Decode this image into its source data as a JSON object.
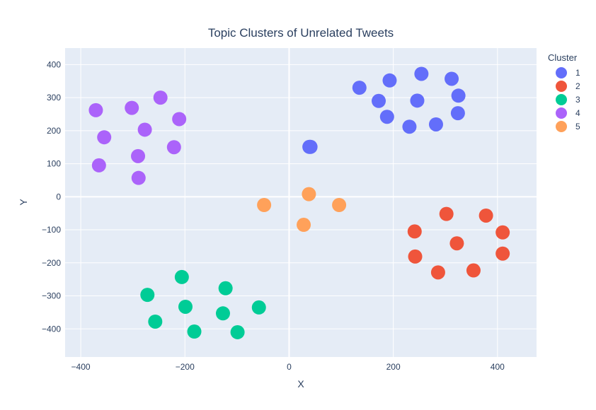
{
  "chart_data": {
    "type": "scatter",
    "title": "Topic Clusters of Unrelated Tweets",
    "xlabel": "X",
    "ylabel": "Y",
    "xlim": [
      -430,
      475
    ],
    "ylim": [
      -485,
      450
    ],
    "xticks": [
      -400,
      -200,
      0,
      200,
      400
    ],
    "yticks": [
      -400,
      -300,
      -200,
      -100,
      0,
      100,
      200,
      300,
      400
    ],
    "grid": true,
    "legend_title": "Cluster",
    "legend_position": "right",
    "series": [
      {
        "name": "1",
        "color": "#636efa",
        "points": [
          [
            135,
            330
          ],
          [
            172,
            290
          ],
          [
            193,
            352
          ],
          [
            188,
            242
          ],
          [
            231,
            212
          ],
          [
            246,
            291
          ],
          [
            254,
            372
          ],
          [
            282,
            219
          ],
          [
            312,
            357
          ],
          [
            325,
            306
          ],
          [
            324,
            253
          ],
          [
            39,
            151
          ],
          [
            41,
            151
          ]
        ]
      },
      {
        "name": "2",
        "color": "#ef553b",
        "points": [
          [
            241,
            -105
          ],
          [
            242,
            -181
          ],
          [
            286,
            -229
          ],
          [
            302,
            -52
          ],
          [
            322,
            -141
          ],
          [
            354,
            -223
          ],
          [
            378,
            -57
          ],
          [
            410,
            -108
          ],
          [
            410,
            -172
          ]
        ]
      },
      {
        "name": "3",
        "color": "#00cc96",
        "points": [
          [
            -272,
            -297
          ],
          [
            -257,
            -378
          ],
          [
            -206,
            -243
          ],
          [
            -199,
            -333
          ],
          [
            -182,
            -408
          ],
          [
            -127,
            -353
          ],
          [
            -122,
            -277
          ],
          [
            -99,
            -410
          ],
          [
            -58,
            -335
          ]
        ]
      },
      {
        "name": "4",
        "color": "#ab63fa",
        "points": [
          [
            -371,
            262
          ],
          [
            -355,
            180
          ],
          [
            -365,
            95
          ],
          [
            -302,
            269
          ],
          [
            -289,
            57
          ],
          [
            -290,
            123
          ],
          [
            -277,
            203
          ],
          [
            -247,
            300
          ],
          [
            -211,
            235
          ],
          [
            -221,
            150
          ]
        ]
      },
      {
        "name": "5",
        "color": "#ffa15a",
        "points": [
          [
            -48,
            -25
          ],
          [
            28,
            -85
          ],
          [
            38,
            8
          ],
          [
            96,
            -25
          ]
        ]
      }
    ]
  }
}
